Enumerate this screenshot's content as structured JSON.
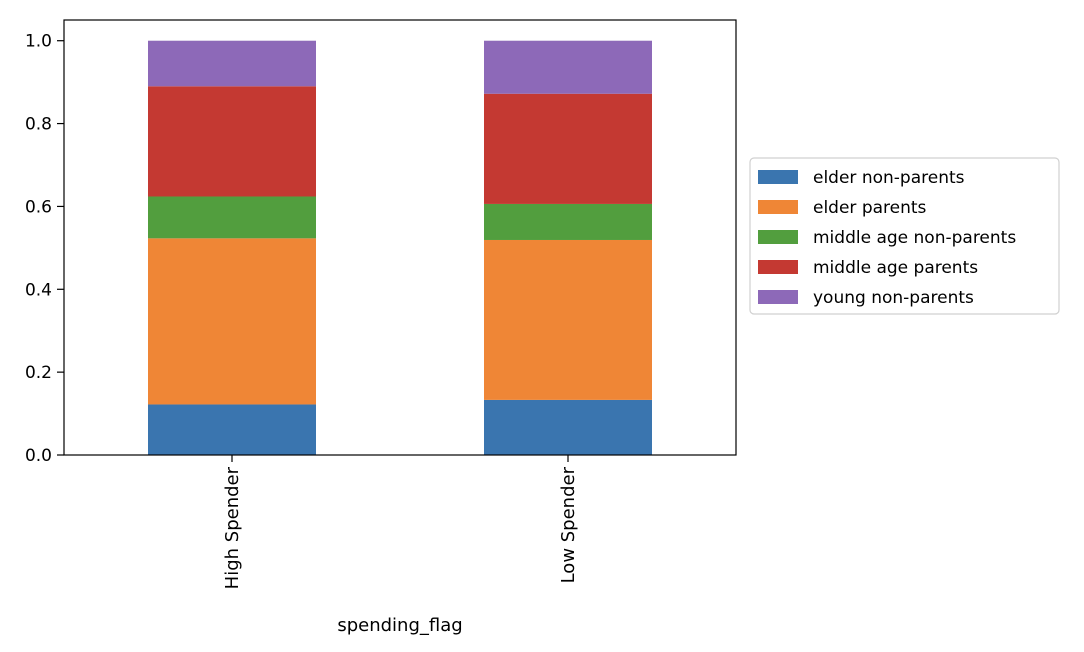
{
  "chart_data": {
    "type": "bar",
    "stacked": true,
    "categories": [
      "High Spender",
      "Low Spender"
    ],
    "series": [
      {
        "name": "elder non-parents",
        "values": [
          0.122,
          0.133
        ],
        "color": "#3a75af"
      },
      {
        "name": "elder parents",
        "values": [
          0.401,
          0.386
        ],
        "color": "#ef8636"
      },
      {
        "name": "middle age non-parents",
        "values": [
          0.101,
          0.087
        ],
        "color": "#529e3e"
      },
      {
        "name": "middle age parents",
        "values": [
          0.266,
          0.266
        ],
        "color": "#c43932"
      },
      {
        "name": "young non-parents",
        "values": [
          0.11,
          0.128
        ],
        "color": "#8d69b8"
      }
    ],
    "xlabel": "spending_flag",
    "ylabel": "",
    "ylim": [
      0,
      1.05
    ],
    "yticks": [
      0.0,
      0.2,
      0.4,
      0.6,
      0.8,
      1.0
    ],
    "ytick_labels": [
      "0.0",
      "0.2",
      "0.4",
      "0.6",
      "0.8",
      "1.0"
    ],
    "grid": false,
    "legend_position": "outside-right"
  }
}
